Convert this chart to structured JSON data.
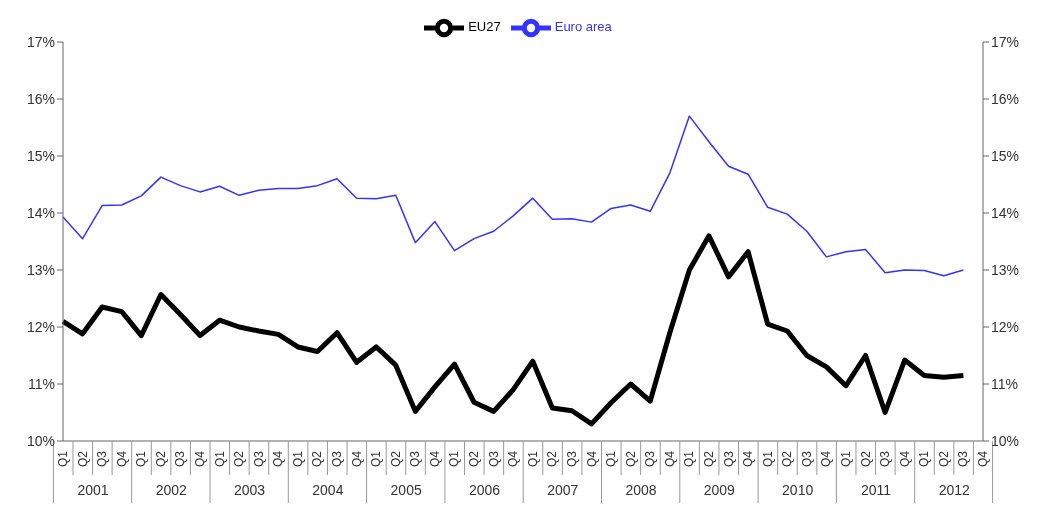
{
  "chart_data": {
    "type": "line",
    "categories": [
      "Q1",
      "Q2",
      "Q3",
      "Q4",
      "Q1",
      "Q2",
      "Q3",
      "Q4",
      "Q1",
      "Q2",
      "Q3",
      "Q4",
      "Q1",
      "Q2",
      "Q3",
      "Q4",
      "Q1",
      "Q2",
      "Q3",
      "Q4",
      "Q1",
      "Q2",
      "Q3",
      "Q4",
      "Q1",
      "Q2",
      "Q3",
      "Q4",
      "Q1",
      "Q2",
      "Q3",
      "Q4",
      "Q1",
      "Q2",
      "Q3",
      "Q4",
      "Q1",
      "Q2",
      "Q3",
      "Q4",
      "Q1",
      "Q2",
      "Q3",
      "Q4",
      "Q1",
      "Q2",
      "Q3",
      "Q4"
    ],
    "series": [
      {
        "name": "Euro area",
        "color": "#3333ff",
        "values": [
          13.93,
          13.55,
          14.13,
          14.14,
          14.3,
          14.63,
          14.48,
          14.37,
          14.47,
          14.31,
          14.4,
          14.43,
          14.43,
          14.48,
          14.6,
          14.26,
          14.25,
          14.31,
          13.48,
          13.85,
          13.34,
          13.55,
          13.68,
          13.95,
          14.26,
          13.89,
          13.9,
          13.84,
          14.08,
          14.14,
          14.03,
          14.7,
          15.7,
          15.25,
          14.82,
          14.68,
          14.1,
          13.98,
          13.68,
          13.23,
          13.32,
          13.36,
          12.95,
          13.0,
          12.99,
          12.9,
          13.0,
          null
        ]
      },
      {
        "name": "EU27",
        "color": "#000000",
        "values": [
          12.1,
          11.88,
          12.35,
          12.27,
          11.85,
          12.57,
          12.22,
          11.85,
          12.12,
          12.0,
          11.93,
          11.87,
          11.65,
          11.57,
          11.9,
          11.38,
          11.65,
          11.33,
          10.52,
          10.95,
          11.35,
          10.68,
          10.52,
          10.9,
          11.4,
          10.58,
          10.53,
          10.3,
          10.67,
          11.0,
          10.7,
          11.9,
          13.0,
          13.6,
          12.88,
          13.32,
          12.05,
          11.93,
          11.5,
          11.3,
          10.97,
          11.5,
          10.5,
          11.42,
          11.15,
          11.12,
          11.15,
          null
        ]
      }
    ],
    "annotations": [
      "2001",
      "2002",
      "2003",
      "2004",
      "2005",
      "2006",
      "2007",
      "2008",
      "2009",
      "2010",
      "2011",
      "2012"
    ],
    "ylim": [
      10,
      17
    ],
    "yticks": [
      {
        "value": 10,
        "label": "10%"
      },
      {
        "value": 11,
        "label": "11%"
      },
      {
        "value": 12,
        "label": "12%"
      },
      {
        "value": 13,
        "label": "13%"
      },
      {
        "value": 14,
        "label": "14%"
      },
      {
        "value": 15,
        "label": "15%"
      },
      {
        "value": 16,
        "label": "16%"
      },
      {
        "value": 17,
        "label": "17%"
      }
    ],
    "y2lim": [
      10,
      17
    ],
    "y2ticks": [
      {
        "value": 10,
        "label": "10%"
      },
      {
        "value": 11,
        "label": "11%"
      },
      {
        "value": 12,
        "label": "12%"
      },
      {
        "value": 13,
        "label": "13%"
      },
      {
        "value": 14,
        "label": "14%"
      },
      {
        "value": 15,
        "label": "15%"
      },
      {
        "value": 16,
        "label": "16%"
      },
      {
        "value": 17,
        "label": "17%"
      }
    ],
    "grid": false,
    "legend": "top",
    "marker": "none",
    "line_style": "solid"
  }
}
